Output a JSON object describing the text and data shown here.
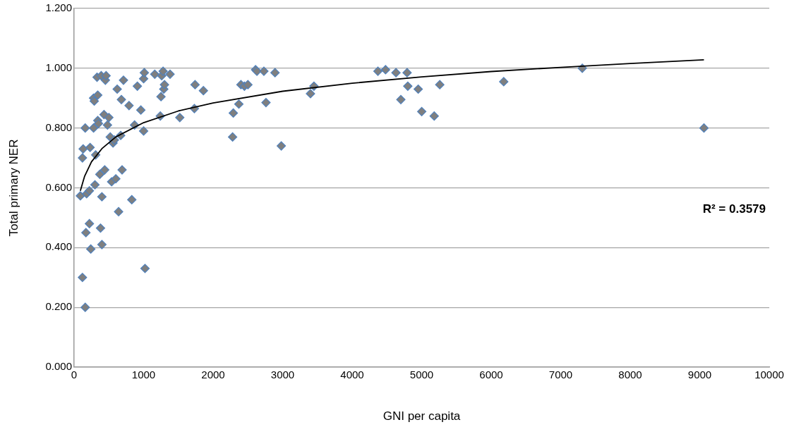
{
  "chart_data": {
    "type": "scatter",
    "xlabel": "GNI per capita",
    "ylabel": "Total primary NER",
    "xlim": [
      0,
      10000
    ],
    "xticks": [
      0,
      1000,
      2000,
      3000,
      4000,
      5000,
      6000,
      7000,
      8000,
      9000,
      10000
    ],
    "ylim": [
      0,
      1.2
    ],
    "yticks": [
      {
        "value": 0,
        "label": "0.000"
      },
      {
        "value": 0.2,
        "label": "0.200"
      },
      {
        "value": 0.4,
        "label": "0.400"
      },
      {
        "value": 0.6,
        "label": "0.600"
      },
      {
        "value": 0.8,
        "label": "0.800"
      },
      {
        "value": 1.0,
        "label": "1.000"
      },
      {
        "value": 1.2,
        "label": "1.200"
      }
    ],
    "grid": "y",
    "legend": false,
    "marker": "diamond",
    "annotations": [
      "R² = 0.3579"
    ],
    "series": [
      {
        "type": "scatter",
        "color": "#7f7f7f",
        "x": [
          90,
          120,
          130,
          160,
          120,
          160,
          170,
          180,
          220,
          220,
          240,
          230,
          280,
          280,
          290,
          300,
          310,
          330,
          340,
          340,
          350,
          370,
          380,
          390,
          400,
          400,
          430,
          440,
          450,
          460,
          480,
          500,
          520,
          540,
          560,
          580,
          600,
          620,
          640,
          670,
          680,
          690,
          710,
          790,
          830,
          870,
          910,
          960,
          1000,
          1000,
          1010,
          1020,
          1160,
          1240,
          1250,
          1260,
          1280,
          1290,
          1300,
          1380,
          1520,
          1730,
          1740,
          1860,
          2280,
          2290,
          2370,
          2400,
          2450,
          2500,
          2610,
          2630,
          2730,
          2760,
          2890,
          2980,
          3400,
          3450,
          4370,
          4480,
          4630,
          4700,
          4790,
          4800,
          4950,
          5000,
          5180,
          5260,
          6180,
          7310,
          9060
        ],
        "values": [
          0.573,
          0.7,
          0.73,
          0.8,
          0.3,
          0.2,
          0.45,
          0.58,
          0.59,
          0.48,
          0.395,
          0.735,
          0.8,
          0.9,
          0.89,
          0.61,
          0.71,
          0.97,
          0.91,
          0.825,
          0.815,
          0.645,
          0.465,
          0.975,
          0.57,
          0.41,
          0.845,
          0.66,
          0.96,
          0.975,
          0.81,
          0.835,
          0.77,
          0.62,
          0.75,
          0.76,
          0.63,
          0.93,
          0.52,
          0.775,
          0.895,
          0.66,
          0.96,
          0.875,
          0.56,
          0.81,
          0.94,
          0.86,
          0.79,
          0.965,
          0.985,
          0.33,
          0.98,
          0.84,
          0.905,
          0.975,
          0.99,
          0.93,
          0.945,
          0.98,
          0.835,
          0.865,
          0.945,
          0.925,
          0.77,
          0.85,
          0.88,
          0.945,
          0.94,
          0.945,
          0.995,
          0.99,
          0.99,
          0.885,
          0.985,
          0.74,
          0.915,
          0.94,
          0.99,
          0.995,
          0.985,
          0.895,
          0.985,
          0.94,
          0.93,
          0.855,
          0.84,
          0.945,
          0.955,
          1.0,
          0.8
        ]
      },
      {
        "type": "line",
        "color": "#000000",
        "marker": "none",
        "x": [
          90,
          150,
          250,
          400,
          600,
          1000,
          1500,
          2000,
          3000,
          4000,
          5000,
          6000,
          7000,
          8000,
          9060
        ],
        "values": [
          0.59,
          0.638,
          0.687,
          0.731,
          0.77,
          0.818,
          0.857,
          0.884,
          0.923,
          0.95,
          0.971,
          0.989,
          1.003,
          1.016,
          1.028
        ]
      }
    ]
  }
}
